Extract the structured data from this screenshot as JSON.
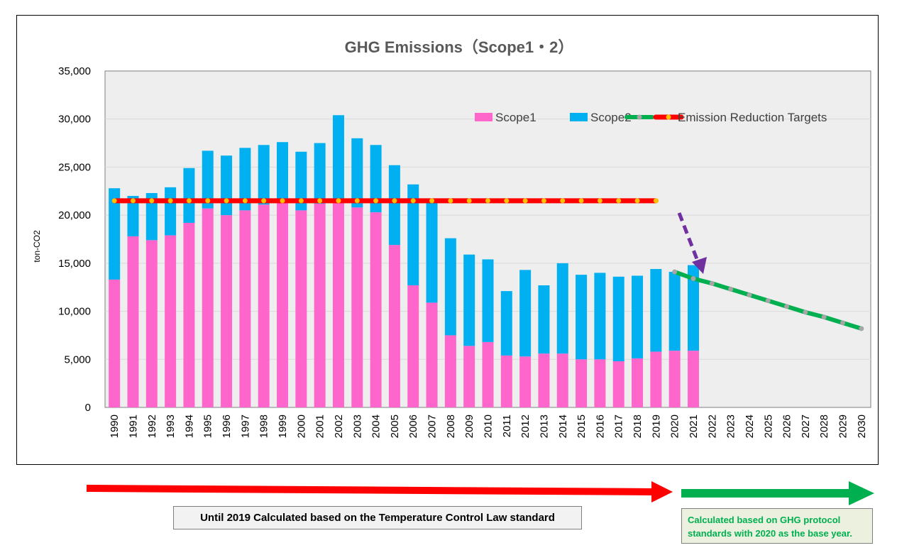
{
  "chart_data": {
    "type": "bar",
    "title": "GHG Emissions（Scope1・2）",
    "ylabel": "ton-CO2",
    "xlabel": "",
    "ylim": [
      0,
      35000
    ],
    "yticks": [
      "0",
      "5,000",
      "10,000",
      "15,000",
      "20,000",
      "25,000",
      "30,000",
      "35,000"
    ],
    "ytick_values": [
      0,
      5000,
      10000,
      15000,
      20000,
      25000,
      30000,
      35000
    ],
    "stacked": true,
    "grid": "horizontal",
    "legend_position": "top-right, inside plot",
    "categories": [
      "1990",
      "1991",
      "1992",
      "1993",
      "1994",
      "1995",
      "1996",
      "1997",
      "1998",
      "1999",
      "2000",
      "2001",
      "2002",
      "2003",
      "2004",
      "2005",
      "2006",
      "2007",
      "2008",
      "2009",
      "2010",
      "2011",
      "2012",
      "2013",
      "2014",
      "2015",
      "2016",
      "2017",
      "2018",
      "2019",
      "2020",
      "2021",
      "2022",
      "2023",
      "2024",
      "2025",
      "2026",
      "2027",
      "2028",
      "2029",
      "2030"
    ],
    "series": [
      {
        "name": "Scope1",
        "kind": "bar",
        "color": "#ff66cc",
        "values": [
          13300,
          17800,
          17400,
          17900,
          19200,
          20700,
          20000,
          20500,
          21100,
          21300,
          20500,
          21200,
          21300,
          20800,
          20300,
          16900,
          12700,
          10900,
          7500,
          6400,
          6800,
          5400,
          5300,
          5600,
          5600,
          5000,
          5000,
          4800,
          5100,
          5800,
          5900,
          5900,
          null,
          null,
          null,
          null,
          null,
          null,
          null,
          null,
          null
        ]
      },
      {
        "name": "Scope2",
        "kind": "bar",
        "color": "#00b0f0",
        "values": [
          9500,
          4200,
          4900,
          5000,
          5700,
          6000,
          6200,
          6500,
          6200,
          6300,
          6100,
          6300,
          9100,
          7200,
          7000,
          8300,
          10500,
          10400,
          10100,
          9500,
          8600,
          6700,
          9000,
          7100,
          9400,
          8800,
          9000,
          8800,
          8600,
          8600,
          8200,
          8900,
          null,
          null,
          null,
          null,
          null,
          null,
          null,
          null,
          null
        ]
      },
      {
        "name": "",
        "kind": "line",
        "color": "#00b050",
        "marker_color": "#a6a6a6",
        "values": [
          null,
          null,
          null,
          null,
          null,
          null,
          null,
          null,
          null,
          null,
          null,
          null,
          null,
          null,
          null,
          null,
          null,
          null,
          null,
          null,
          null,
          null,
          null,
          null,
          null,
          null,
          null,
          null,
          null,
          null,
          14100,
          13400,
          12900,
          12300,
          11700,
          11100,
          10500,
          9900,
          9400,
          8800,
          8200
        ]
      },
      {
        "name": "Emission Reduction Targets",
        "kind": "line",
        "color": "#ff0000",
        "marker_color": "#ffc000",
        "values": [
          21500,
          21500,
          21500,
          21500,
          21500,
          21500,
          21500,
          21500,
          21500,
          21500,
          21500,
          21500,
          21500,
          21500,
          21500,
          21500,
          21500,
          21500,
          21500,
          21500,
          21500,
          21500,
          21500,
          21500,
          21500,
          21500,
          21500,
          21500,
          21500,
          21500,
          null,
          null,
          null,
          null,
          null,
          null,
          null,
          null,
          null,
          null,
          null
        ]
      }
    ],
    "colors": {
      "plot_background": "#eeeeee",
      "gridline": "#d9d9d9",
      "annotation_arrow": "#7030a0",
      "left_arrow": "#ff0000",
      "right_arrow": "#00b050"
    }
  },
  "notes": {
    "left": "Until 2019 Calculated based on the Temperature Control Law standard",
    "right": "Calculated based on GHG protocol standards with 2020 as the base year."
  }
}
